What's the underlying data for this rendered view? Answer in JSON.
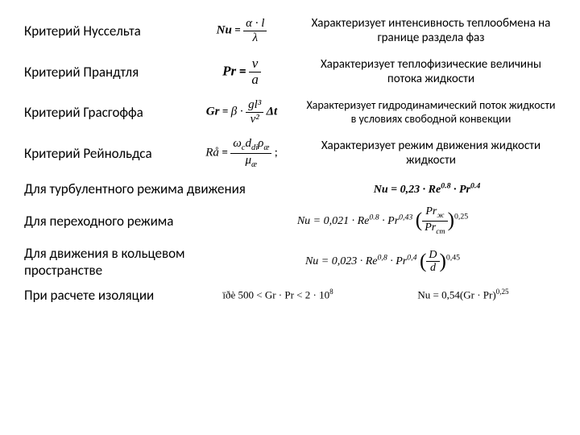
{
  "criteria": [
    {
      "name": "Критерий Нуссельта",
      "sym": "Nu",
      "num": "α · l",
      "den": "λ",
      "desc": "Характеризует интенсивность теплообмена на границе раздела фаз"
    },
    {
      "name": "Критерий Прандтля",
      "sym": "Pr",
      "num": "ν",
      "den": "a",
      "desc": "Характеризует теплофизические величины потока жидкости"
    },
    {
      "name": "Критерий Грасгоффа",
      "sym": "Gr",
      "pre": "β ·",
      "num": "gl³",
      "den": "v²",
      "post": "Δt",
      "desc": "Характеризует гидродинамический поток жидкости в условиях свободной конвекции"
    },
    {
      "name": "Критерий Рейнольдса",
      "sym": "Rå",
      "num_html": "ω<span class='sub'>c</span>d<span class='sub'>di</span>ρ<span class='sub'>æ</span>",
      "den_html": "μ<span class='sub'>æ</span>",
      "desc": "Характеризует режим движения жидкости жидкости"
    }
  ],
  "regimes": {
    "turb": {
      "label": "Для турбулентного режима движения",
      "eqn": "Nu = 0,23 · Re<span class='sup'>0.8</span> · Pr<span class='sup'>0.4</span>"
    },
    "trans": {
      "label": "Для переходного режима",
      "eqn_pre": "Nu = 0,021 · Re<span class='sup'>0.8</span> · Pr<span class='sup'>0,43</span>",
      "frac_num": "Pr<span class='sub'>ж</span>",
      "frac_den": "Pr<span class='sub'>ст</span>",
      "exp": "0,25"
    },
    "annular": {
      "label": "Для движения в кольцевом пространстве",
      "eqn_pre": "Nu = 0,023 · Re<span class='sup'>0,8</span> · Pr<span class='sup'>0,4</span>",
      "frac_num": "D",
      "frac_den": "d",
      "exp": "0,45"
    },
    "insulation": {
      "label": "При расчете изоляции",
      "cond": "ïðè 500 &lt; Gr · Pr &lt; 2 · 10<span class='sup'>8</span>",
      "eqn": "Nu = 0,54(Gr · Pr)<span class='sup'>0,25</span>"
    }
  }
}
